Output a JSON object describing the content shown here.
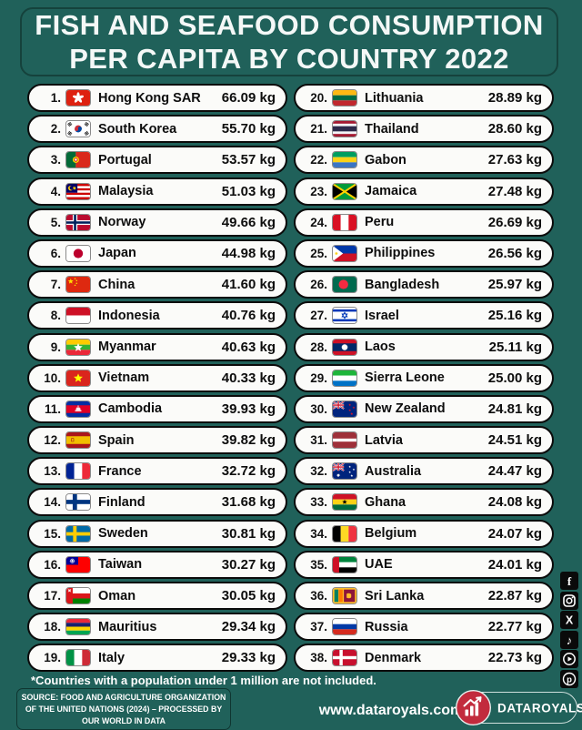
{
  "title": {
    "line1": "FISH AND SEAFOOD CONSUMPTION",
    "line2": "PER CAPITA BY COUNTRY 2022"
  },
  "rows": [
    {
      "rank": "1.",
      "flag": "hk",
      "country": "Hong Kong SAR",
      "value": "66.09 kg"
    },
    {
      "rank": "2.",
      "flag": "kr",
      "country": "South Korea",
      "value": "55.70 kg"
    },
    {
      "rank": "3.",
      "flag": "pt",
      "country": "Portugal",
      "value": "53.57 kg"
    },
    {
      "rank": "4.",
      "flag": "my",
      "country": "Malaysia",
      "value": "51.03 kg"
    },
    {
      "rank": "5.",
      "flag": "no",
      "country": "Norway",
      "value": "49.66 kg"
    },
    {
      "rank": "6.",
      "flag": "jp",
      "country": "Japan",
      "value": "44.98 kg"
    },
    {
      "rank": "7.",
      "flag": "cn",
      "country": "China",
      "value": "41.60 kg"
    },
    {
      "rank": "8.",
      "flag": "id",
      "country": "Indonesia",
      "value": "40.76 kg"
    },
    {
      "rank": "9.",
      "flag": "mm",
      "country": "Myanmar",
      "value": "40.63 kg"
    },
    {
      "rank": "10.",
      "flag": "vn",
      "country": "Vietnam",
      "value": "40.33 kg"
    },
    {
      "rank": "11.",
      "flag": "kh",
      "country": "Cambodia",
      "value": "39.93 kg"
    },
    {
      "rank": "12.",
      "flag": "es",
      "country": "Spain",
      "value": "39.82 kg"
    },
    {
      "rank": "13.",
      "flag": "fr",
      "country": "France",
      "value": "32.72 kg"
    },
    {
      "rank": "14.",
      "flag": "fi",
      "country": "Finland",
      "value": "31.68 kg"
    },
    {
      "rank": "15.",
      "flag": "se",
      "country": "Sweden",
      "value": "30.81 kg"
    },
    {
      "rank": "16.",
      "flag": "tw",
      "country": "Taiwan",
      "value": "30.27 kg"
    },
    {
      "rank": "17.",
      "flag": "om",
      "country": "Oman",
      "value": "30.05 kg"
    },
    {
      "rank": "18.",
      "flag": "mu",
      "country": "Mauritius",
      "value": "29.34 kg"
    },
    {
      "rank": "19.",
      "flag": "it",
      "country": "Italy",
      "value": "29.33 kg"
    },
    {
      "rank": "20.",
      "flag": "lt",
      "country": "Lithuania",
      "value": "28.89 kg"
    },
    {
      "rank": "21.",
      "flag": "th",
      "country": "Thailand",
      "value": "28.60 kg"
    },
    {
      "rank": "22.",
      "flag": "ga",
      "country": "Gabon",
      "value": "27.63 kg"
    },
    {
      "rank": "23.",
      "flag": "jm",
      "country": "Jamaica",
      "value": "27.48 kg"
    },
    {
      "rank": "24.",
      "flag": "pe",
      "country": "Peru",
      "value": "26.69 kg"
    },
    {
      "rank": "25.",
      "flag": "ph",
      "country": "Philippines",
      "value": "26.56 kg"
    },
    {
      "rank": "26.",
      "flag": "bd",
      "country": "Bangladesh",
      "value": "25.97 kg"
    },
    {
      "rank": "27.",
      "flag": "il",
      "country": "Israel",
      "value": "25.16 kg"
    },
    {
      "rank": "28.",
      "flag": "la",
      "country": "Laos",
      "value": "25.11 kg"
    },
    {
      "rank": "29.",
      "flag": "sl",
      "country": "Sierra Leone",
      "value": "25.00 kg"
    },
    {
      "rank": "30.",
      "flag": "nz",
      "country": "New Zealand",
      "value": "24.81 kg"
    },
    {
      "rank": "31.",
      "flag": "lv",
      "country": "Latvia",
      "value": "24.51 kg"
    },
    {
      "rank": "32.",
      "flag": "au",
      "country": "Australia",
      "value": "24.47 kg"
    },
    {
      "rank": "33.",
      "flag": "gh",
      "country": "Ghana",
      "value": "24.08 kg"
    },
    {
      "rank": "34.",
      "flag": "be",
      "country": "Belgium",
      "value": "24.07 kg"
    },
    {
      "rank": "35.",
      "flag": "ae",
      "country": "UAE",
      "value": "24.01 kg"
    },
    {
      "rank": "36.",
      "flag": "lk",
      "country": "Sri Lanka",
      "value": "22.87 kg"
    },
    {
      "rank": "37.",
      "flag": "ru",
      "country": "Russia",
      "value": "22.77 kg"
    },
    {
      "rank": "38.",
      "flag": "dk",
      "country": "Denmark",
      "value": "22.73 kg"
    }
  ],
  "chart_data": {
    "type": "table",
    "title": "FISH AND SEAFOOD CONSUMPTION PER CAPITA BY COUNTRY 2022",
    "unit": "kg",
    "categories": [
      "Hong Kong SAR",
      "South Korea",
      "Portugal",
      "Malaysia",
      "Norway",
      "Japan",
      "China",
      "Indonesia",
      "Myanmar",
      "Vietnam",
      "Cambodia",
      "Spain",
      "France",
      "Finland",
      "Sweden",
      "Taiwan",
      "Oman",
      "Mauritius",
      "Italy",
      "Lithuania",
      "Thailand",
      "Gabon",
      "Jamaica",
      "Peru",
      "Philippines",
      "Bangladesh",
      "Israel",
      "Laos",
      "Sierra Leone",
      "New Zealand",
      "Latvia",
      "Australia",
      "Ghana",
      "Belgium",
      "UAE",
      "Sri Lanka",
      "Russia",
      "Denmark"
    ],
    "values": [
      66.09,
      55.7,
      53.57,
      51.03,
      49.66,
      44.98,
      41.6,
      40.76,
      40.63,
      40.33,
      39.93,
      39.82,
      32.72,
      31.68,
      30.81,
      30.27,
      30.05,
      29.34,
      29.33,
      28.89,
      28.6,
      27.63,
      27.48,
      26.69,
      26.56,
      25.97,
      25.16,
      25.11,
      25.0,
      24.81,
      24.51,
      24.47,
      24.08,
      24.07,
      24.01,
      22.87,
      22.77,
      22.73
    ],
    "ranks": [
      1,
      2,
      3,
      4,
      5,
      6,
      7,
      8,
      9,
      10,
      11,
      12,
      13,
      14,
      15,
      16,
      17,
      18,
      19,
      20,
      21,
      22,
      23,
      24,
      25,
      26,
      27,
      28,
      29,
      30,
      31,
      32,
      33,
      34,
      35,
      36,
      37,
      38
    ]
  },
  "footnote": "*Countries with a population under 1 million are not included.",
  "source": {
    "line1": "SOURCE: FOOD AND AGRICULTURE ORGANIZATION",
    "line2": "OF THE UNITED NATIONS (2024) – PROCESSED BY",
    "line3": "OUR WORLD IN DATA"
  },
  "website": "www.dataroyals.com",
  "brand": {
    "name": "DATAROYALS"
  },
  "social": [
    "facebook-icon",
    "instagram-icon",
    "x-twitter-icon",
    "tiktok-icon",
    "youtube-icon",
    "pinterest-icon"
  ],
  "colors": {
    "background": "#20615A",
    "pill": "#FBFBF9",
    "pill_border": "#0B0B0B",
    "text_dark": "#0D0D0D",
    "text_light": "#FFFFFF",
    "logo_red": "#C22B3D"
  }
}
